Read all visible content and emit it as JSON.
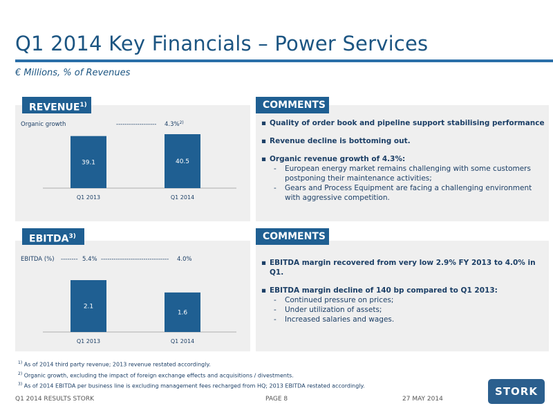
{
  "title": "Q1 2014 Key Financials – Power Services",
  "subtitle": "€ Millions, % of Revenues",
  "revenue": {
    "tag": "REVENUE",
    "tag_sup": "1)",
    "growth_label": "Organic growth",
    "growth_dashes": "-------------------",
    "growth_value": "4.3%",
    "growth_sup": "2)"
  },
  "ebitda": {
    "tag": "EBITDA",
    "tag_sup": "3)",
    "margin_label": "EBITDA (%)",
    "dashes_a": "--------",
    "margin_2013": "5.4%",
    "dashes_b": "--------------------------------",
    "margin_2014": "4.0%"
  },
  "chart_data": [
    {
      "type": "bar",
      "categories": [
        "Q1 2013",
        "Q1 2014"
      ],
      "values": [
        39.1,
        40.5
      ],
      "value_labels": [
        "39.1",
        "40.5"
      ],
      "color": "#1f5f92"
    },
    {
      "type": "bar",
      "categories": [
        "Q1 2013",
        "Q1 2014"
      ],
      "values": [
        2.1,
        1.6
      ],
      "value_labels": [
        "2.1",
        "1.6"
      ],
      "color": "#1f5f92"
    }
  ],
  "comments1": {
    "tag": "COMMENTS",
    "b1": "Quality of order book and pipeline support stabilising performance",
    "b2": "Revenue decline is bottoming out.",
    "b3": "Organic revenue growth of 4.3%:",
    "s1": "European energy market remains challenging with some customers postponing their maintenance activities;",
    "s2": "Gears and Process Equipment are facing a challenging environment with aggressive competition."
  },
  "comments2": {
    "tag": "COMMENTS",
    "b1": "EBITDA margin recovered from very low 2.9% FY 2013 to 4.0% in Q1.",
    "b2": "EBITDA margin decline of 140 bp compared to Q1 2013:",
    "s1": "Continued pressure on prices;",
    "s2": "Under utilization of assets;",
    "s3": "Increased salaries and wages."
  },
  "footnotes": {
    "n1_sup": "1)",
    "n1": "As of 2014 third party revenue; 2013 revenue restated accordingly.",
    "n2_sup": "2)",
    "n2": "Organic growth, excluding the impact of foreign exchange effects and acquisitions / divestments.",
    "n3_sup": "3)",
    "n3": "As of 2014 EBITDA per business line is excluding management fees recharged from HQ; 2013 EBITDA restated accordingly."
  },
  "footer": {
    "left": "Q1 2014 RESULTS STORK",
    "page": "PAGE 8",
    "date": "27 MAY 2014",
    "logo": "STORK"
  }
}
